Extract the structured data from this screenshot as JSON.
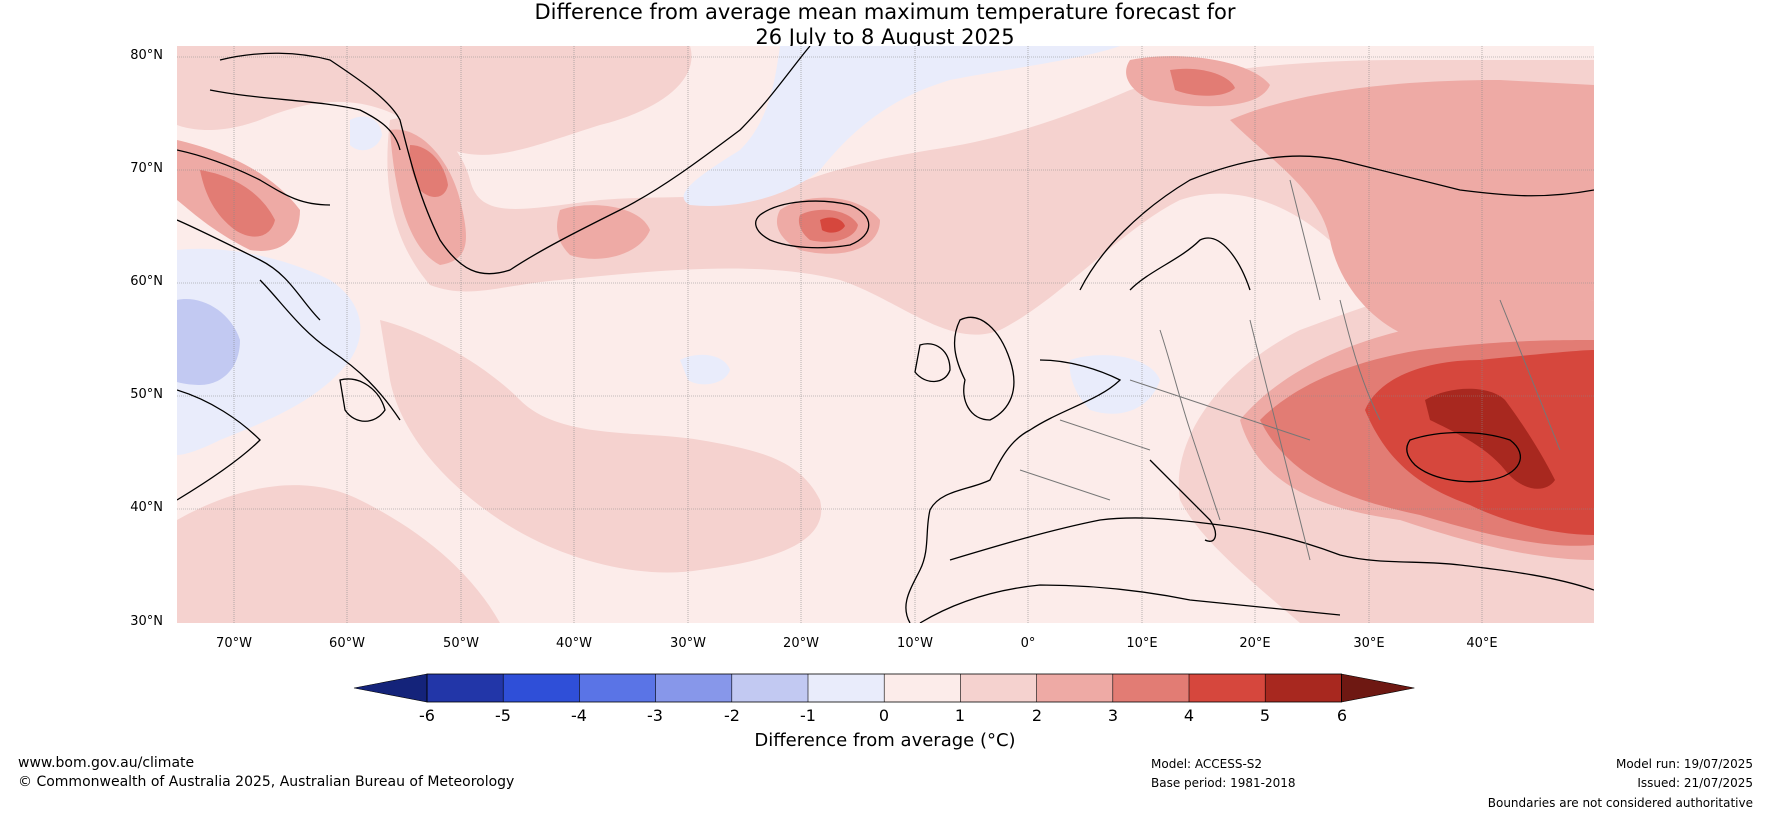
{
  "title": {
    "line1": "Difference from average mean maximum temperature forecast for",
    "line2": "26 July to 8 August 2025"
  },
  "map": {
    "lat_labels": [
      "80°N",
      "70°N",
      "60°N",
      "50°N",
      "40°N",
      "30°N"
    ],
    "lon_labels": [
      "70°W",
      "60°W",
      "50°W",
      "40°W",
      "30°W",
      "20°W",
      "10°W",
      "0°",
      "10°E",
      "20°E",
      "30°E",
      "40°E"
    ]
  },
  "colorbar": {
    "label": "Difference from average (°C)",
    "ticks": [
      "-6",
      "-5",
      "-4",
      "-3",
      "-2",
      "-1",
      "0",
      "1",
      "2",
      "3",
      "4",
      "5",
      "6"
    ],
    "colors": [
      "#2236a8",
      "#2f4fd8",
      "#5a74e6",
      "#8797ea",
      "#c2c9f2",
      "#e9ecfb",
      "#fcecea",
      "#f5d2cf",
      "#eeaaa5",
      "#e27c74",
      "#d6473d",
      "#a8281f"
    ],
    "under_color": "#14237a",
    "over_color": "#6e1812"
  },
  "footer": {
    "url": "www.bom.gov.au/climate",
    "copyright": "© Commonwealth of Australia 2025, Australian Bureau of Meteorology",
    "model": "Model: ACCESS-S2",
    "base_period": "Base period: 1981-2018",
    "model_run": "Model run: 19/07/2025",
    "issued": "Issued: 21/07/2025",
    "disclaimer": "Boundaries are not considered authoritative"
  }
}
